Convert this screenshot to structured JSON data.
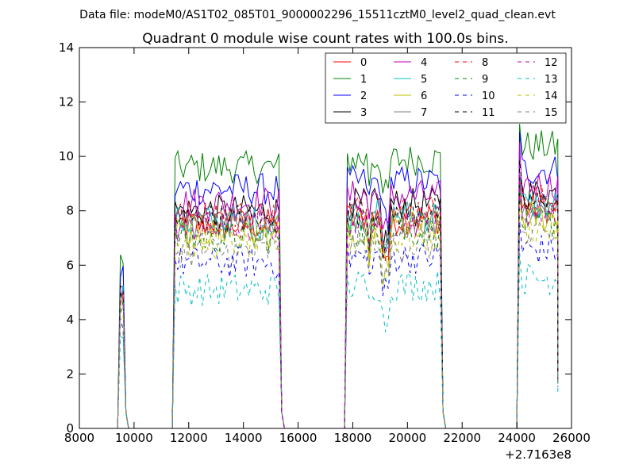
{
  "header": {
    "data_file": "Data file: modeM0/AS1T02_085T01_9000002296_15511cztM0_level2_quad_clean.evt"
  },
  "chart_data": {
    "type": "line",
    "title": "Quadrant 0 module wise count rates with 100.0s bins.",
    "xlabel": "",
    "ylabel": "",
    "x_offset_label": "+2.7163e8",
    "xlim": [
      8000,
      26000
    ],
    "ylim": [
      0,
      14
    ],
    "xticks": [
      8000,
      10000,
      12000,
      14000,
      16000,
      18000,
      20000,
      22000,
      24000,
      26000
    ],
    "yticks": [
      0,
      2,
      4,
      6,
      8,
      10,
      12,
      14
    ],
    "grid": false,
    "legend_position": "top-right",
    "segments": [
      {
        "start": 9500,
        "end": 9600
      },
      {
        "start": 11500,
        "end": 15300
      },
      {
        "start": 17800,
        "end": 21200
      },
      {
        "start": 24100,
        "end": 25500
      }
    ],
    "series": [
      {
        "name": "0",
        "color": "#ff0000",
        "dash": "solid",
        "level": 7.5
      },
      {
        "name": "1",
        "color": "#008000",
        "dash": "solid",
        "level": 9.6
      },
      {
        "name": "2",
        "color": "#0000ff",
        "dash": "solid",
        "level": 8.8
      },
      {
        "name": "3",
        "color": "#000000",
        "dash": "solid",
        "level": 8.0
      },
      {
        "name": "4",
        "color": "#bf00bf",
        "dash": "solid",
        "level": 8.3
      },
      {
        "name": "5",
        "color": "#00bfbf",
        "dash": "solid",
        "level": 7.6
      },
      {
        "name": "6",
        "color": "#bfbf00",
        "dash": "solid",
        "level": 7.2
      },
      {
        "name": "7",
        "color": "#808080",
        "dash": "solid",
        "level": 7.4
      },
      {
        "name": "8",
        "color": "#ff0000",
        "dash": "dashed",
        "level": 7.8
      },
      {
        "name": "9",
        "color": "#008000",
        "dash": "dashed",
        "level": 7.0
      },
      {
        "name": "10",
        "color": "#0000ff",
        "dash": "dashed",
        "level": 6.1
      },
      {
        "name": "11",
        "color": "#000000",
        "dash": "dashed",
        "level": 7.7
      },
      {
        "name": "12",
        "color": "#bf00bf",
        "dash": "dashed",
        "level": 7.4
      },
      {
        "name": "13",
        "color": "#00bfbf",
        "dash": "dashed",
        "level": 5.1
      },
      {
        "name": "14",
        "color": "#bfbf00",
        "dash": "dashed",
        "level": 6.8
      },
      {
        "name": "15",
        "color": "#808080",
        "dash": "dashed",
        "level": 6.5
      }
    ]
  }
}
